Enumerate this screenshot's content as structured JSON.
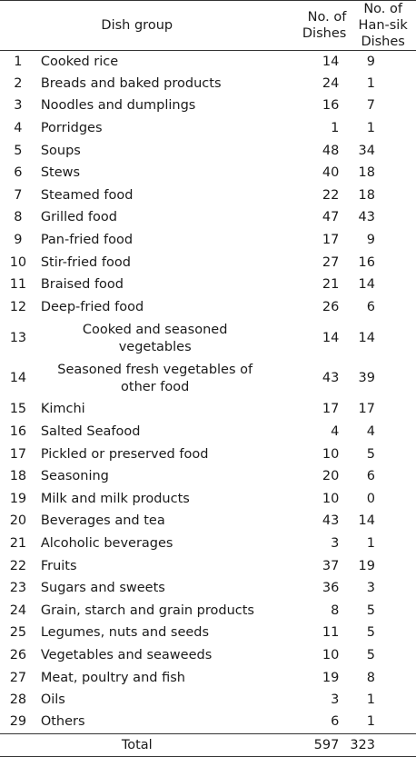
{
  "table": {
    "headers": {
      "dish_group": "Dish group",
      "no_dishes_line1": "No. of",
      "no_dishes_line2": "Dishes",
      "no_hansik_line1": "No. of Han-sik",
      "no_hansik_line2": "Dishes"
    },
    "rows": [
      {
        "no": "1",
        "name": "Cooked rice",
        "dishes": "14",
        "hansik": "9"
      },
      {
        "no": "2",
        "name": "Breads and baked products",
        "dishes": "24",
        "hansik": "1"
      },
      {
        "no": "3",
        "name": "Noodles and dumplings",
        "dishes": "16",
        "hansik": "7"
      },
      {
        "no": "4",
        "name": "Porridges",
        "dishes": "1",
        "hansik": "1"
      },
      {
        "no": "5",
        "name": "Soups",
        "dishes": "48",
        "hansik": "34"
      },
      {
        "no": "6",
        "name": "Stews",
        "dishes": "40",
        "hansik": "18"
      },
      {
        "no": "7",
        "name": "Steamed food",
        "dishes": "22",
        "hansik": "18"
      },
      {
        "no": "8",
        "name": "Grilled food",
        "dishes": "47",
        "hansik": "43"
      },
      {
        "no": "9",
        "name": "Pan-fried food",
        "dishes": "17",
        "hansik": "9"
      },
      {
        "no": "10",
        "name": "Stir-fried food",
        "dishes": "27",
        "hansik": "16"
      },
      {
        "no": "11",
        "name": "Braised food",
        "dishes": "21",
        "hansik": "14"
      },
      {
        "no": "12",
        "name": "Deep-fried food",
        "dishes": "26",
        "hansik": "6"
      },
      {
        "no": "13",
        "name_line1": "Cooked and seasoned",
        "name_line2": "vegetables",
        "dishes": "14",
        "hansik": "14"
      },
      {
        "no": "14",
        "name_line1": "Seasoned fresh vegetables of",
        "name_line2": "other food",
        "dishes": "43",
        "hansik": "39"
      },
      {
        "no": "15",
        "name": "Kimchi",
        "dishes": "17",
        "hansik": "17"
      },
      {
        "no": "16",
        "name": "Salted Seafood",
        "dishes": "4",
        "hansik": "4"
      },
      {
        "no": "17",
        "name": "Pickled or preserved food",
        "dishes": "10",
        "hansik": "5"
      },
      {
        "no": "18",
        "name": "Seasoning",
        "dishes": "20",
        "hansik": "6"
      },
      {
        "no": "19",
        "name": "Milk and milk products",
        "dishes": "10",
        "hansik": "0"
      },
      {
        "no": "20",
        "name": "Beverages and tea",
        "dishes": "43",
        "hansik": "14"
      },
      {
        "no": "21",
        "name": "Alcoholic beverages",
        "dishes": "3",
        "hansik": "1"
      },
      {
        "no": "22",
        "name": "Fruits",
        "dishes": "37",
        "hansik": "19"
      },
      {
        "no": "23",
        "name": "Sugars and sweets",
        "dishes": "36",
        "hansik": "3"
      },
      {
        "no": "24",
        "name": "Grain, starch and grain products",
        "dishes": "8",
        "hansik": "5"
      },
      {
        "no": "25",
        "name": "Legumes, nuts and seeds",
        "dishes": "11",
        "hansik": "5"
      },
      {
        "no": "26",
        "name": "Vegetables and seaweeds",
        "dishes": "10",
        "hansik": "5"
      },
      {
        "no": "27",
        "name": "Meat, poultry and fish",
        "dishes": "19",
        "hansik": "8"
      },
      {
        "no": "28",
        "name": "Oils",
        "dishes": "3",
        "hansik": "1"
      },
      {
        "no": "29",
        "name": "Others",
        "dishes": "6",
        "hansik": "1"
      }
    ],
    "total": {
      "label": "Total",
      "dishes": "597",
      "hansik": "323"
    }
  }
}
